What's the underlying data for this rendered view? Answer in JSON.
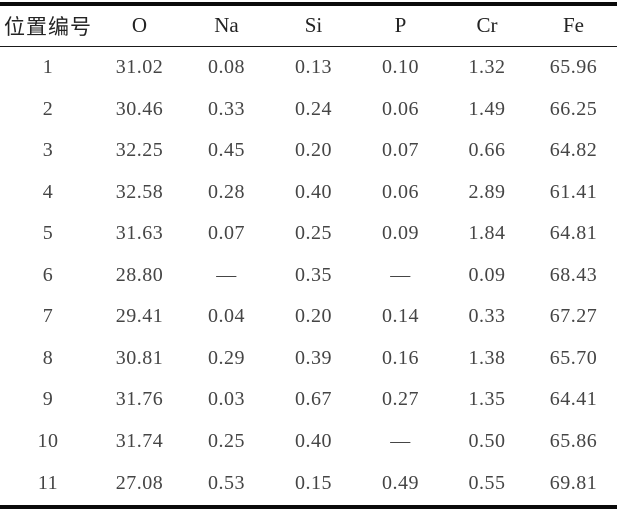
{
  "table": {
    "columns": [
      "位置编号",
      "O",
      "Na",
      "Si",
      "P",
      "Cr",
      "Fe"
    ],
    "column_keys": [
      "position",
      "o",
      "na",
      "si",
      "p",
      "cr",
      "fe"
    ],
    "rows": [
      [
        "1",
        "31.02",
        "0.08",
        "0.13",
        "0.10",
        "1.32",
        "65.96"
      ],
      [
        "2",
        "30.46",
        "0.33",
        "0.24",
        "0.06",
        "1.49",
        "66.25"
      ],
      [
        "3",
        "32.25",
        "0.45",
        "0.20",
        "0.07",
        "0.66",
        "64.82"
      ],
      [
        "4",
        "32.58",
        "0.28",
        "0.40",
        "0.06",
        "2.89",
        "61.41"
      ],
      [
        "5",
        "31.63",
        "0.07",
        "0.25",
        "0.09",
        "1.84",
        "64.81"
      ],
      [
        "6",
        "28.80",
        "—",
        "0.35",
        "—",
        "0.09",
        "68.43"
      ],
      [
        "7",
        "29.41",
        "0.04",
        "0.20",
        "0.14",
        "0.33",
        "67.27"
      ],
      [
        "8",
        "30.81",
        "0.29",
        "0.39",
        "0.16",
        "1.38",
        "65.70"
      ],
      [
        "9",
        "31.76",
        "0.03",
        "0.67",
        "0.27",
        "1.35",
        "64.41"
      ],
      [
        "10",
        "31.74",
        "0.25",
        "0.40",
        "—",
        "0.50",
        "65.86"
      ],
      [
        "11",
        "27.08",
        "0.53",
        "0.15",
        "0.49",
        "0.55",
        "69.81"
      ]
    ],
    "missing_value_symbol": "—"
  },
  "colors": {
    "background": "#ffffff",
    "rule": "#0a0a0a",
    "header_text": "#232323",
    "cell_text": "#454545"
  }
}
